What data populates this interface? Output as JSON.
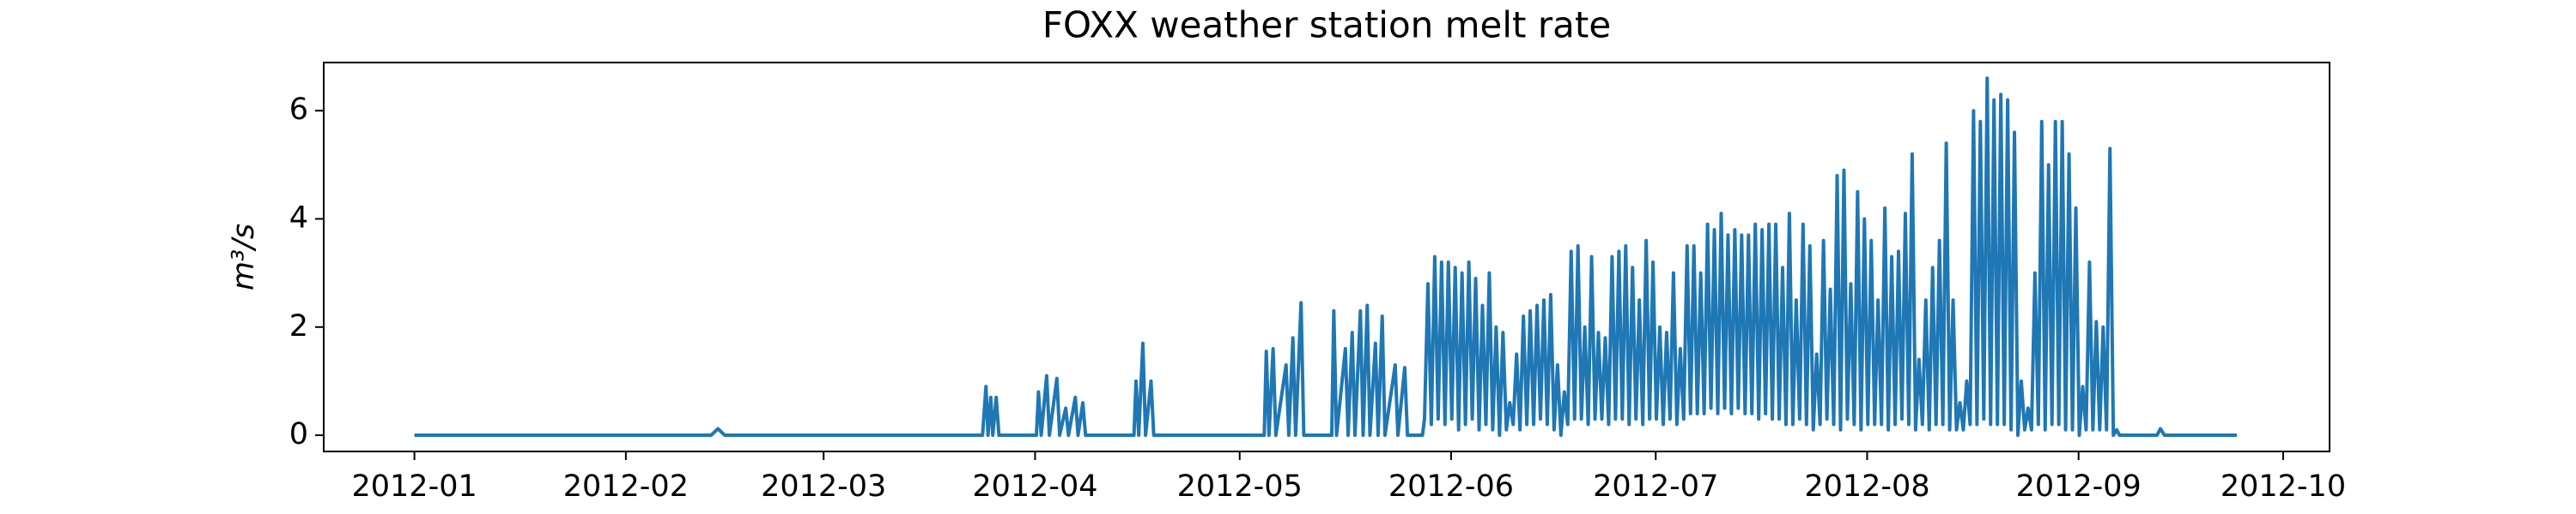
{
  "chart_data": {
    "type": "line",
    "title": "FOXX weather station melt rate",
    "y_label": "m³/s",
    "color": "#1f77b4",
    "x": [
      0,
      43.5,
      44.5,
      45.5,
      83.3,
      83.8,
      84.1,
      84.5,
      84.8,
      85.3,
      85.7,
      91.2,
      91.5,
      91.9,
      92.7,
      93.1,
      94.2,
      94.6,
      95.5,
      95.9,
      96.9,
      97.3,
      98,
      98.4,
      105.5,
      105.8,
      106.2,
      106.8,
      107.2,
      108,
      108.4,
      124.6,
      124.9,
      125.3,
      125.9,
      126.3,
      127.8,
      128.2,
      128.8,
      129.2,
      130,
      130.4,
      134.5,
      134.8,
      135.2,
      136.5,
      136.9,
      137.5,
      137.9,
      138.7,
      139.1,
      139.7,
      140.1,
      140.9,
      141.3,
      141.9,
      142.3,
      143.8,
      144.2,
      145.2,
      145.6,
      147.8,
      148.1,
      148.6,
      149.1,
      149.6,
      150.1,
      150.6,
      151.1,
      151.6,
      152.1,
      152.6,
      153.1,
      153.6,
      154.1,
      154.6,
      155.1,
      155.6,
      156.1,
      156.6,
      157.1,
      157.6,
      158.1,
      158.6,
      159.1,
      159.6,
      160.1,
      160.6,
      161.1,
      161.6,
      162.1,
      162.6,
      163.1,
      163.6,
      164.1,
      164.6,
      165.1,
      165.6,
      166.1,
      166.6,
      167.1,
      167.6,
      168.1,
      168.6,
      169.1,
      169.6,
      170.1,
      170.6,
      171.1,
      171.6,
      172.1,
      172.6,
      173.1,
      173.6,
      174.1,
      174.6,
      175.1,
      175.6,
      176.1,
      176.6,
      177.1,
      177.6,
      178.1,
      178.6,
      179.1,
      179.6,
      180.1,
      180.6,
      181.1,
      181.6,
      182.1,
      182.6,
      183.1,
      183.6,
      184.1,
      184.6,
      185.1,
      185.6,
      186.1,
      186.6,
      187.1,
      187.6,
      188.1,
      188.6,
      189.1,
      189.6,
      190.1,
      190.6,
      191.1,
      191.6,
      192.1,
      192.6,
      193.1,
      193.6,
      194.1,
      194.6,
      195.1,
      195.6,
      196.1,
      196.6,
      197.1,
      197.6,
      198.1,
      198.6,
      199.1,
      199.6,
      200.1,
      200.6,
      201.1,
      201.6,
      202.1,
      202.6,
      203.1,
      203.6,
      204.1,
      204.6,
      205.1,
      205.6,
      206.1,
      206.6,
      207.1,
      207.6,
      208.1,
      208.6,
      209.1,
      209.6,
      210.1,
      210.6,
      211.1,
      211.6,
      212.1,
      212.6,
      213.1,
      213.6,
      214.1,
      214.6,
      215.1,
      215.6,
      216.1,
      216.6,
      217.1,
      217.6,
      218.1,
      218.6,
      219.1,
      219.6,
      220.1,
      220.6,
      221.1,
      221.6,
      222.1,
      222.6,
      223.1,
      223.6,
      224.1,
      224.6,
      225.1,
      225.6,
      226.1,
      226.6,
      227.1,
      227.6,
      228.1,
      228.6,
      229.1,
      229.6,
      230.1,
      230.6,
      231.1,
      231.6,
      232.1,
      232.6,
      233.1,
      233.6,
      234.1,
      234.6,
      235.1,
      235.6,
      236.1,
      236.6,
      237.1,
      237.6,
      238.1,
      238.6,
      239.1,
      239.6,
      240.1,
      240.6,
      241.1,
      241.6,
      242.1,
      242.6,
      243.1,
      243.6,
      244.1,
      244.6,
      245.1,
      245.6,
      246.1,
      246.6,
      247.1,
      247.6,
      248.1,
      248.6,
      249.1,
      249.6,
      250,
      255.5,
      256,
      256.6,
      267.2
    ],
    "values": [
      0,
      0,
      0.12,
      0,
      0,
      0.9,
      0,
      0.7,
      0,
      0.7,
      0,
      0,
      0.8,
      0,
      1.1,
      0,
      1.05,
      0,
      0.5,
      0,
      0.7,
      0,
      0.6,
      0,
      0,
      1.0,
      0,
      1.7,
      0,
      1.0,
      0,
      0,
      1.55,
      0,
      1.6,
      0,
      1.3,
      0,
      1.8,
      0,
      2.45,
      0,
      0,
      2.3,
      0,
      1.6,
      0,
      1.9,
      0,
      2.3,
      0,
      2.4,
      0,
      1.7,
      0,
      2.2,
      0,
      1.3,
      0,
      1.25,
      0,
      0,
      0.3,
      2.8,
      0.2,
      3.3,
      0.3,
      3.2,
      0.2,
      3.2,
      0.3,
      3.1,
      0.1,
      3.0,
      0.2,
      3.2,
      0.3,
      2.9,
      0.1,
      2.4,
      0.2,
      3.0,
      0.1,
      2.0,
      0,
      1.9,
      0.1,
      0.6,
      0.2,
      1.5,
      0.1,
      2.2,
      0.2,
      2.3,
      0.2,
      2.4,
      0.3,
      2.5,
      0.2,
      2.6,
      0.1,
      1.3,
      0,
      0.8,
      0.2,
      3.4,
      0.3,
      3.5,
      0.3,
      2.0,
      0.2,
      3.3,
      0.3,
      1.9,
      0.3,
      1.8,
      0.2,
      3.3,
      0.3,
      3.4,
      0.3,
      3.5,
      0.2,
      3.1,
      0.3,
      2.5,
      0.2,
      3.6,
      0.3,
      3.2,
      0.3,
      2.0,
      0.2,
      1.9,
      0.3,
      3.0,
      0.2,
      1.6,
      0.3,
      3.5,
      0.4,
      3.5,
      0.4,
      3.0,
      0.4,
      3.9,
      0.5,
      3.8,
      0.4,
      4.1,
      0.5,
      3.7,
      0.4,
      3.8,
      0.5,
      3.7,
      0.4,
      3.7,
      0.4,
      3.9,
      0.3,
      3.8,
      0.4,
      3.9,
      0.3,
      3.9,
      0.3,
      3.1,
      0.2,
      4.1,
      0.2,
      2.5,
      0.3,
      3.9,
      0.2,
      3.5,
      0.1,
      1.5,
      0.2,
      3.6,
      0.3,
      2.7,
      0.2,
      4.8,
      0.1,
      4.9,
      0.3,
      2.8,
      0.2,
      4.5,
      0.1,
      4.0,
      0.2,
      3.6,
      0.2,
      2.5,
      0.2,
      4.2,
      0.1,
      3.3,
      0.2,
      3.4,
      0.3,
      4.1,
      0.2,
      5.2,
      0.1,
      1.4,
      0.2,
      2.5,
      0.1,
      3.1,
      0.2,
      3.6,
      0.2,
      5.4,
      0.1,
      2.5,
      0.1,
      0.6,
      0.1,
      1.0,
      0.2,
      6.0,
      0.2,
      5.8,
      0.3,
      6.6,
      0.2,
      6.2,
      0.2,
      6.3,
      0.2,
      6.2,
      0.1,
      5.6,
      0,
      1.0,
      0.1,
      0.5,
      0.1,
      3.0,
      0.2,
      5.8,
      0.1,
      5.0,
      0.2,
      5.8,
      0.2,
      5.8,
      0.1,
      5.2,
      0.1,
      4.2,
      0,
      0.9,
      0.1,
      3.2,
      0.1,
      2.1,
      0.1,
      2.0,
      0.1,
      5.3,
      0,
      0.1,
      0,
      0,
      0.12,
      0,
      0
    ],
    "xlim": [
      -13.3,
      280.8
    ],
    "xticks": [
      {
        "value": 0,
        "label": "2012-01"
      },
      {
        "value": 31,
        "label": "2012-02"
      },
      {
        "value": 60,
        "label": "2012-03"
      },
      {
        "value": 91,
        "label": "2012-04"
      },
      {
        "value": 121,
        "label": "2012-05"
      },
      {
        "value": 152,
        "label": "2012-06"
      },
      {
        "value": 182,
        "label": "2012-07"
      },
      {
        "value": 213,
        "label": "2012-08"
      },
      {
        "value": 244,
        "label": "2012-09"
      },
      {
        "value": 274,
        "label": "2012-10"
      }
    ],
    "ylim": [
      -0.3,
      6.89
    ],
    "yticks": [
      0,
      2,
      4,
      6
    ],
    "grid": false
  }
}
